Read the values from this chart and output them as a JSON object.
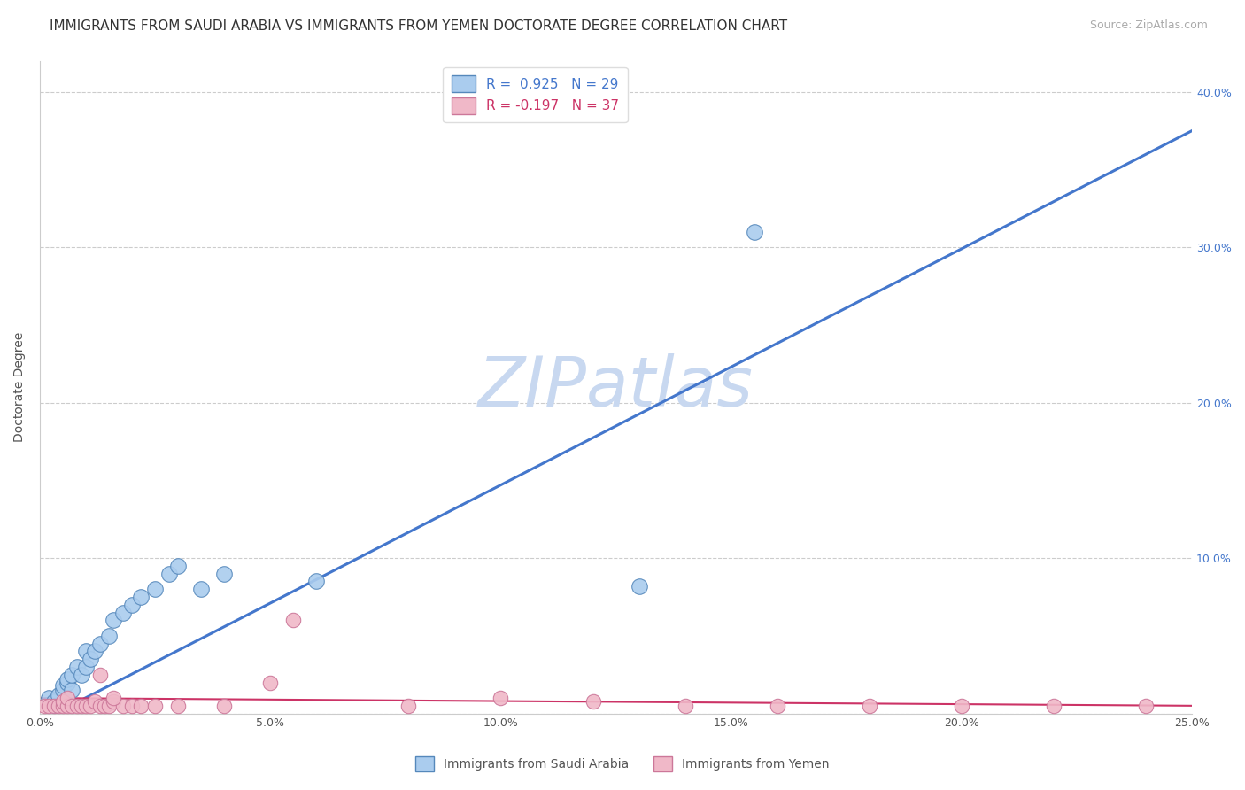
{
  "title": "IMMIGRANTS FROM SAUDI ARABIA VS IMMIGRANTS FROM YEMEN DOCTORATE DEGREE CORRELATION CHART",
  "source": "Source: ZipAtlas.com",
  "ylabel": "Doctorate Degree",
  "xlim": [
    0.0,
    0.25
  ],
  "ylim": [
    0.0,
    0.42
  ],
  "xticks": [
    0.0,
    0.05,
    0.1,
    0.15,
    0.2,
    0.25
  ],
  "yticks": [
    0.0,
    0.1,
    0.2,
    0.3,
    0.4
  ],
  "xticklabels": [
    "0.0%",
    "5.0%",
    "10.0%",
    "15.0%",
    "20.0%",
    "25.0%"
  ],
  "yticklabels": [
    "",
    "10.0%",
    "20.0%",
    "30.0%",
    "40.0%"
  ],
  "saudi_x": [
    0.002,
    0.003,
    0.004,
    0.005,
    0.005,
    0.006,
    0.006,
    0.007,
    0.007,
    0.008,
    0.009,
    0.01,
    0.01,
    0.011,
    0.012,
    0.013,
    0.015,
    0.016,
    0.018,
    0.02,
    0.022,
    0.025,
    0.028,
    0.03,
    0.035,
    0.04,
    0.06,
    0.13,
    0.155
  ],
  "saudi_y": [
    0.01,
    0.008,
    0.012,
    0.015,
    0.018,
    0.02,
    0.022,
    0.015,
    0.025,
    0.03,
    0.025,
    0.03,
    0.04,
    0.035,
    0.04,
    0.045,
    0.05,
    0.06,
    0.065,
    0.07,
    0.075,
    0.08,
    0.09,
    0.095,
    0.08,
    0.09,
    0.085,
    0.082,
    0.31
  ],
  "yemen_x": [
    0.001,
    0.002,
    0.003,
    0.004,
    0.005,
    0.005,
    0.006,
    0.006,
    0.007,
    0.008,
    0.009,
    0.01,
    0.011,
    0.012,
    0.013,
    0.014,
    0.015,
    0.016,
    0.018,
    0.02,
    0.022,
    0.025,
    0.03,
    0.04,
    0.055,
    0.08,
    0.1,
    0.12,
    0.14,
    0.16,
    0.18,
    0.2,
    0.22,
    0.24,
    0.013,
    0.016,
    0.05
  ],
  "yemen_y": [
    0.005,
    0.005,
    0.005,
    0.005,
    0.005,
    0.008,
    0.005,
    0.01,
    0.005,
    0.005,
    0.005,
    0.005,
    0.005,
    0.008,
    0.005,
    0.005,
    0.005,
    0.008,
    0.005,
    0.005,
    0.005,
    0.005,
    0.005,
    0.005,
    0.06,
    0.005,
    0.01,
    0.008,
    0.005,
    0.005,
    0.005,
    0.005,
    0.005,
    0.005,
    0.025,
    0.01,
    0.02
  ],
  "saudi_color": "#aaccee",
  "saudi_edge_color": "#5588bb",
  "yemen_color": "#f0b8c8",
  "yemen_edge_color": "#cc7799",
  "saudi_line_color": "#4477cc",
  "yemen_line_color": "#cc3366",
  "saudi_trendline_x0": 0.0,
  "saudi_trendline_y0": -0.005,
  "saudi_trendline_x1": 0.25,
  "saudi_trendline_y1": 0.375,
  "yemen_trendline_x0": 0.0,
  "yemen_trendline_y0": 0.01,
  "yemen_trendline_x1": 0.25,
  "yemen_trendline_y1": 0.005,
  "R_saudi": 0.925,
  "N_saudi": 29,
  "R_yemen": -0.197,
  "N_yemen": 37,
  "watermark": "ZIPatlas",
  "watermark_color": "#c8d8f0",
  "legend_label_saudi": "Immigrants from Saudi Arabia",
  "legend_label_yemen": "Immigrants from Yemen",
  "background_color": "#ffffff",
  "title_fontsize": 11,
  "axis_label_fontsize": 10,
  "tick_fontsize": 9,
  "legend_fontsize": 11
}
